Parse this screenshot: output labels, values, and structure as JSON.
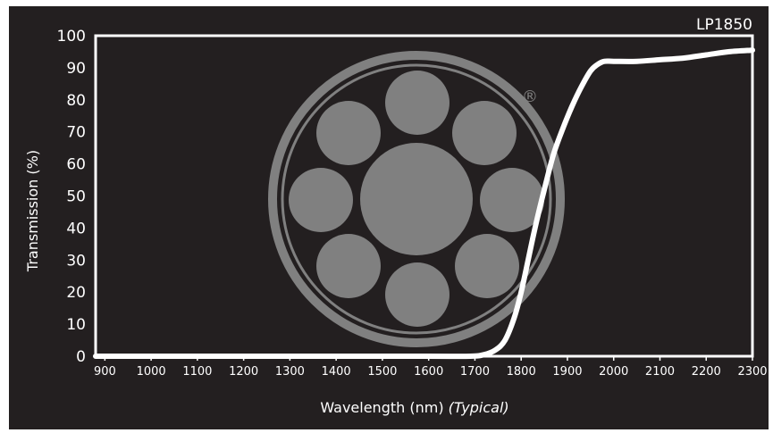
{
  "colors": {
    "background": "#231f20",
    "frame": "#ffffff",
    "curve": "#ffffff",
    "logo": "#808080"
  },
  "logo": {
    "icon": "fiber-bundle-logo-icon",
    "registered_mark": "®"
  },
  "chart_data": {
    "type": "line",
    "model_label": "LP1850",
    "xlabel": "Wavelength (nm)",
    "xlabel_note": "(Typical)",
    "ylabel": "Transmission (%)",
    "xlim": [
      880,
      2300
    ],
    "ylim": [
      0,
      100
    ],
    "x_ticks": [
      900,
      1000,
      1100,
      1200,
      1300,
      1400,
      1500,
      1600,
      1700,
      1800,
      1900,
      2000,
      2100,
      2200,
      2300
    ],
    "y_ticks": [
      0,
      10,
      20,
      30,
      40,
      50,
      60,
      70,
      80,
      90,
      100
    ],
    "grid": false,
    "series": [
      {
        "x": [
          880,
          1000,
          1200,
          1400,
          1600,
          1690,
          1720,
          1745,
          1765,
          1785,
          1800,
          1815,
          1830,
          1850,
          1870,
          1890,
          1910,
          1930,
          1950,
          1965,
          1980,
          2000,
          2050,
          2100,
          2150,
          2200,
          2250,
          2300
        ],
        "y": [
          0,
          0,
          0,
          0,
          0,
          0,
          0.5,
          2,
          5,
          12,
          20,
          30,
          40,
          52,
          63,
          71,
          78,
          84,
          89,
          91,
          92,
          92,
          92,
          92.5,
          93,
          94,
          95,
          95.5
        ]
      }
    ]
  }
}
